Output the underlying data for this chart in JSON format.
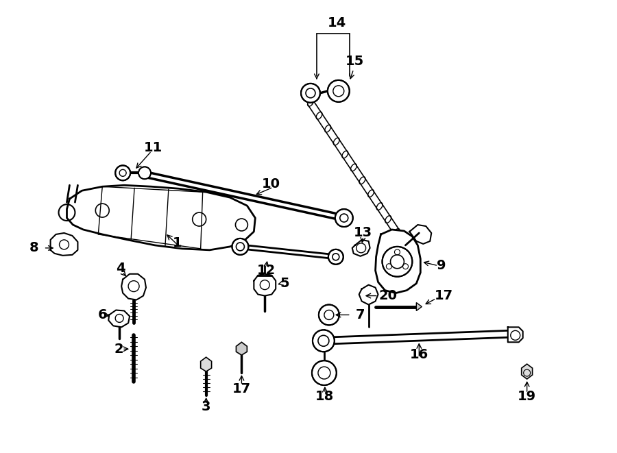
{
  "bg_color": "#ffffff",
  "line_color": "#000000",
  "fig_width": 9.0,
  "fig_height": 6.61,
  "dpi": 100,
  "label_fontsize": 14
}
